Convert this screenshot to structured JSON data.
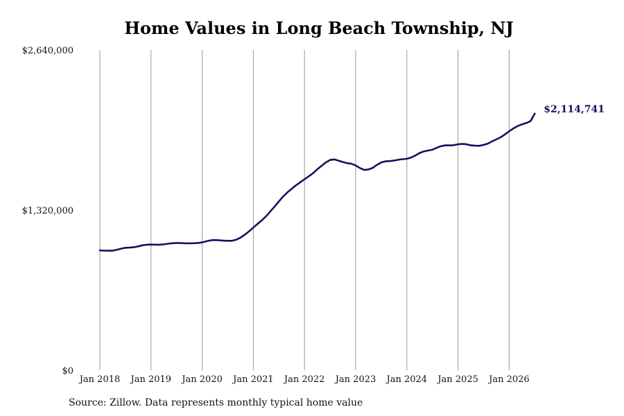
{
  "chart_data": {
    "type": "line",
    "title": "Home Values in Long Beach Township, NJ",
    "source_note": "Source: Zillow. Data represents monthly typical home value",
    "xlabel": "",
    "ylabel": "",
    "x_tick_labels": [
      "Jan 2018",
      "Jan 2019",
      "Jan 2020",
      "Jan 2021",
      "Jan 2022",
      "Jan 2023",
      "Jan 2024",
      "Jan 2025",
      "Jan 2026"
    ],
    "y_tick_labels": [
      "$0",
      "$1,320,000",
      "$2,640,000"
    ],
    "y_ticks": [
      0,
      1320000,
      2640000
    ],
    "ylim": [
      0,
      2640000
    ],
    "xlim": [
      "2018-01",
      "2026-07"
    ],
    "grid": "vertical",
    "line_color": "#12125e",
    "grid_color": "#999999",
    "last_value_label": "$2,114,741",
    "series": [
      {
        "x": [
          "2018-01",
          "2018-02",
          "2018-03",
          "2018-04",
          "2018-05",
          "2018-06",
          "2018-07",
          "2018-08",
          "2018-09",
          "2018-10",
          "2018-11",
          "2018-12",
          "2019-01",
          "2019-02",
          "2019-03",
          "2019-04",
          "2019-05",
          "2019-06",
          "2019-07",
          "2019-08",
          "2019-09",
          "2019-10",
          "2019-11",
          "2019-12",
          "2020-01",
          "2020-02",
          "2020-03",
          "2020-04",
          "2020-05",
          "2020-06",
          "2020-07",
          "2020-08",
          "2020-09",
          "2020-10",
          "2020-11",
          "2020-12",
          "2021-01",
          "2021-02",
          "2021-03",
          "2021-04",
          "2021-05",
          "2021-06",
          "2021-07",
          "2021-08",
          "2021-09",
          "2021-10",
          "2021-11",
          "2021-12",
          "2022-01",
          "2022-02",
          "2022-03",
          "2022-04",
          "2022-05",
          "2022-06",
          "2022-07",
          "2022-08",
          "2022-09",
          "2022-10",
          "2022-11",
          "2022-12",
          "2023-01",
          "2023-02",
          "2023-03",
          "2023-04",
          "2023-05",
          "2023-06",
          "2023-07",
          "2023-08",
          "2023-09",
          "2023-10",
          "2023-11",
          "2023-12",
          "2024-01",
          "2024-02",
          "2024-03",
          "2024-04",
          "2024-05",
          "2024-06",
          "2024-07",
          "2024-08",
          "2024-09",
          "2024-10",
          "2024-11",
          "2024-12",
          "2025-01",
          "2025-02",
          "2025-03",
          "2025-04",
          "2025-05",
          "2025-06",
          "2025-07",
          "2025-08",
          "2025-09",
          "2025-10",
          "2025-11",
          "2025-12",
          "2026-01",
          "2026-02",
          "2026-03",
          "2026-04",
          "2026-05",
          "2026-06",
          "2026-07"
        ],
        "values": [
          988000,
          986000,
          985000,
          985000,
          993000,
          1002000,
          1009000,
          1011000,
          1014000,
          1021000,
          1030000,
          1035000,
          1036000,
          1035000,
          1035000,
          1038000,
          1043000,
          1047000,
          1049000,
          1048000,
          1046000,
          1046000,
          1047000,
          1049000,
          1054000,
          1063000,
          1071000,
          1073000,
          1071000,
          1068000,
          1067000,
          1067000,
          1076000,
          1093000,
          1117000,
          1145000,
          1176000,
          1206000,
          1236000,
          1270000,
          1310000,
          1350000,
          1392000,
          1432000,
          1466000,
          1496000,
          1524000,
          1550000,
          1574000,
          1598000,
          1624000,
          1656000,
          1685000,
          1713000,
          1733000,
          1738000,
          1727000,
          1716000,
          1707000,
          1702000,
          1688000,
          1667000,
          1651000,
          1655000,
          1668000,
          1693000,
          1713000,
          1722000,
          1724000,
          1728000,
          1735000,
          1740000,
          1743000,
          1753000,
          1770000,
          1791000,
          1804000,
          1811000,
          1818000,
          1833000,
          1847000,
          1854000,
          1853000,
          1855000,
          1862000,
          1865000,
          1862000,
          1854000,
          1851000,
          1850000,
          1857000,
          1868000,
          1886000,
          1903000,
          1920000,
          1944000,
          1970000,
          1993000,
          2013000,
          2026000,
          2038000,
          2053000,
          2114741
        ]
      }
    ]
  }
}
